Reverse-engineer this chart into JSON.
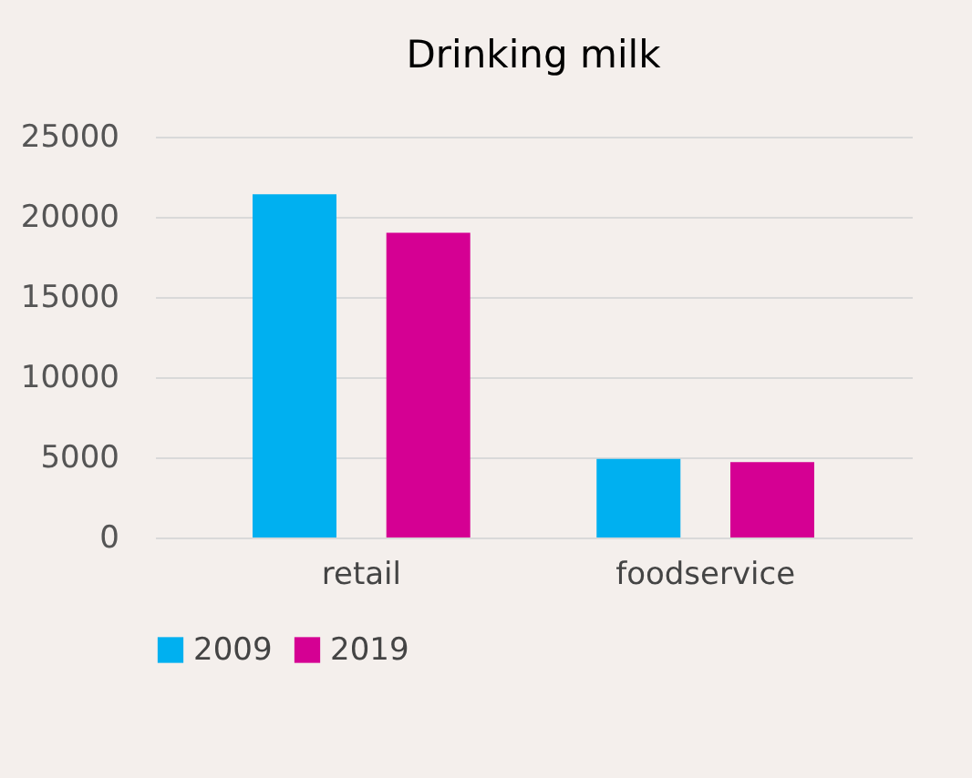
{
  "chart_data": {
    "type": "bar",
    "title": "Drinking milk",
    "categories": [
      "retail",
      "foodservice"
    ],
    "series": [
      {
        "name": "2009",
        "color": "#00b0f0",
        "values": [
          21400,
          4900
        ]
      },
      {
        "name": "2019",
        "color": "#d50093",
        "values": [
          19000,
          4700
        ]
      }
    ],
    "ylim": [
      0,
      25000
    ],
    "yticks": [
      0,
      5000,
      10000,
      15000,
      20000,
      25000
    ],
    "grid": "y",
    "legend": "bottom"
  }
}
